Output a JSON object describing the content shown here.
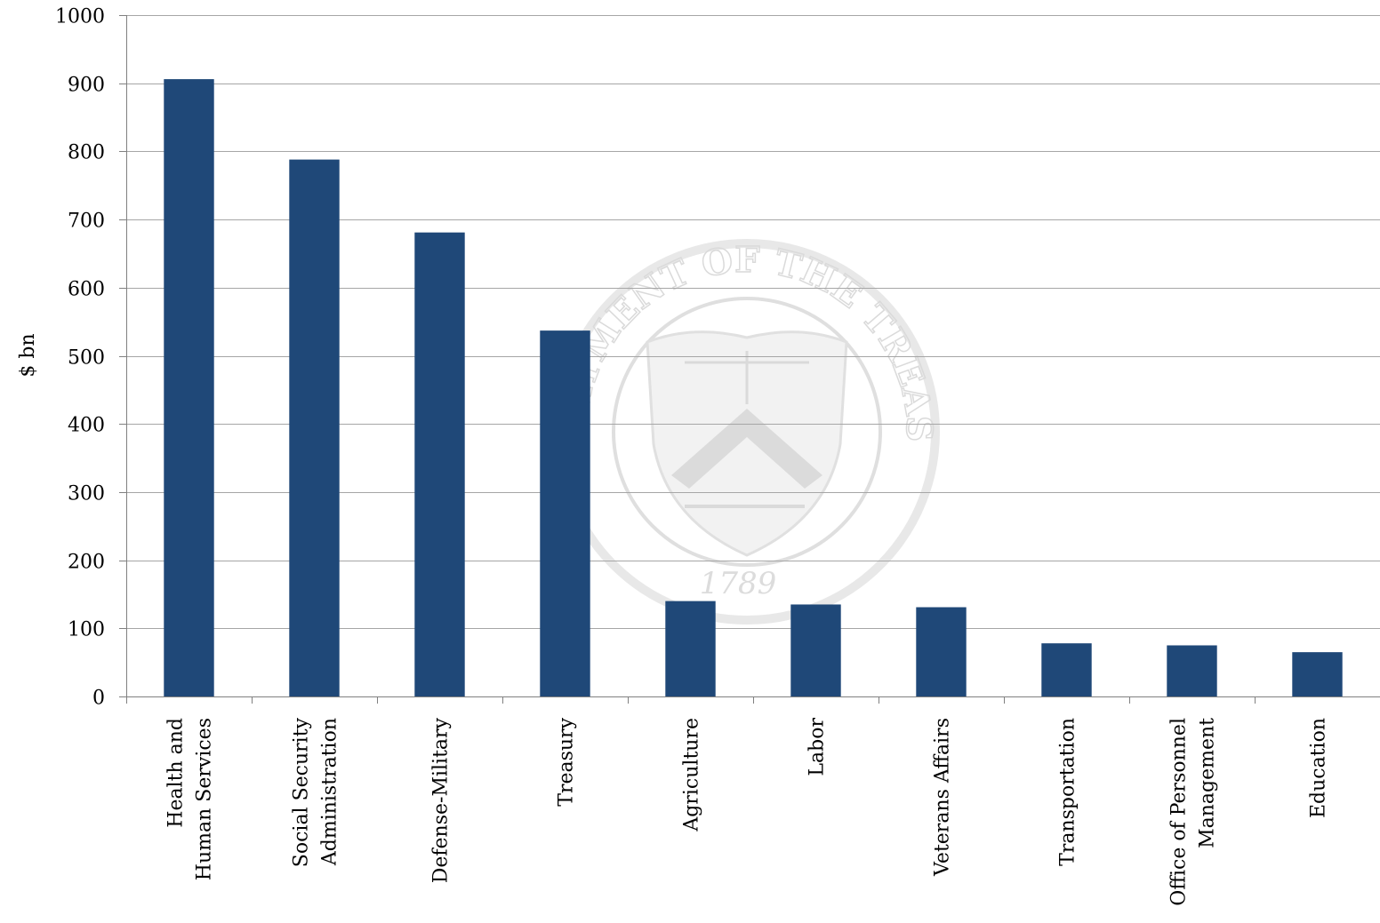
{
  "watermark": {
    "text": "DEPARTMENT OF THE TREASURY",
    "year": "1789",
    "color": "#d9d9d9"
  },
  "chart_data": {
    "type": "bar",
    "ylabel": "$ bn",
    "ylim": [
      0,
      1000
    ],
    "yticks": [
      0,
      100,
      200,
      300,
      400,
      500,
      600,
      700,
      800,
      900,
      1000
    ],
    "grid": true,
    "bar_color": "#1f4878",
    "categories": [
      [
        "Health and",
        "Human Services"
      ],
      [
        "Social Security",
        "Administration"
      ],
      [
        "Defense-Military"
      ],
      [
        "Treasury"
      ],
      [
        "Agriculture"
      ],
      [
        "Labor"
      ],
      [
        "Veterans Affairs"
      ],
      [
        "Transportation"
      ],
      [
        "Office of Personnel",
        "Management"
      ],
      [
        "Education"
      ]
    ],
    "values": [
      906,
      788,
      681,
      537,
      140,
      135,
      131,
      78,
      75,
      65
    ]
  }
}
